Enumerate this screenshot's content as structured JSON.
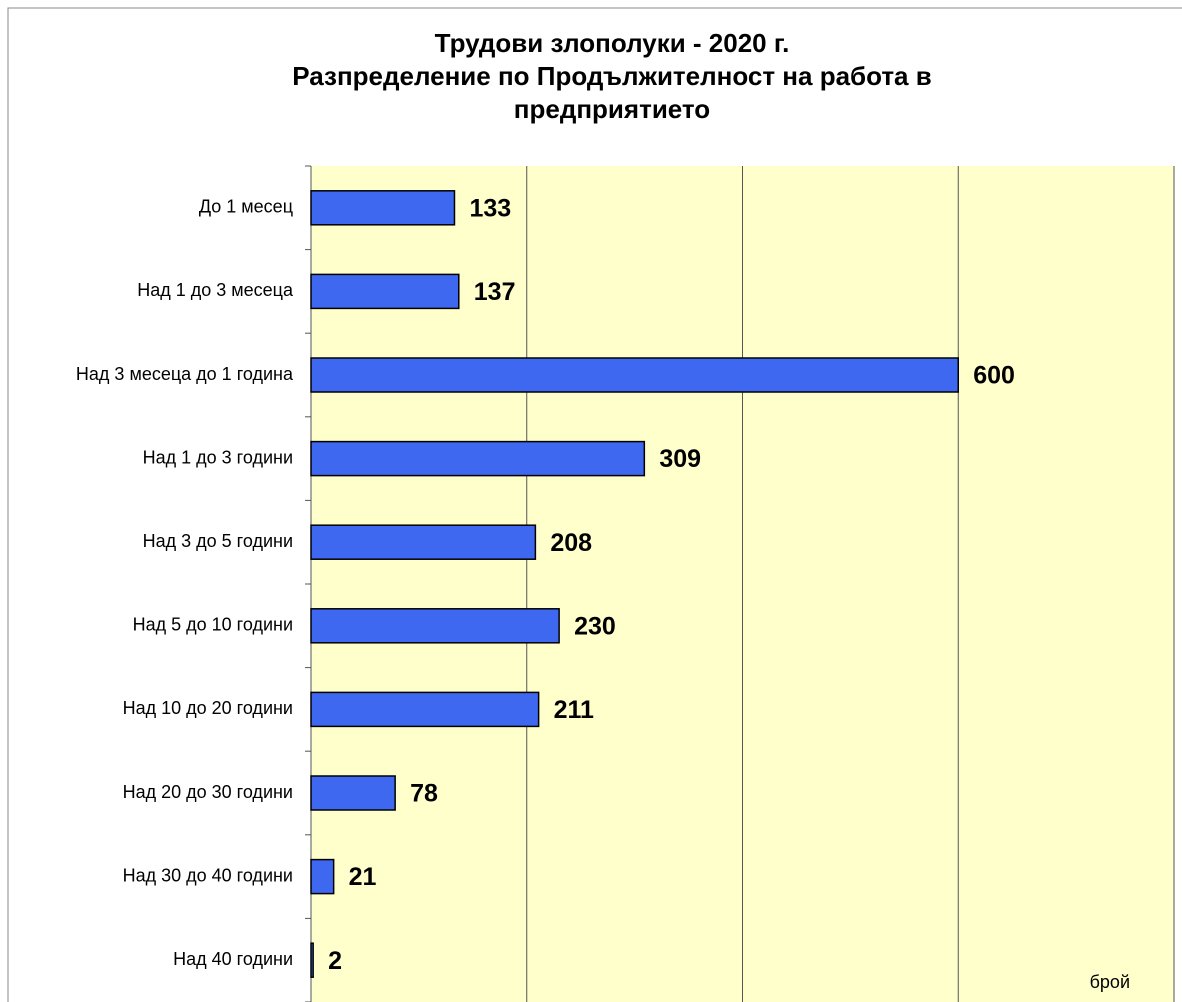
{
  "chart_data": {
    "type": "bar",
    "orientation": "horizontal",
    "title": [
      "Трудови злополуки - 2020 г.",
      "Разпределение по Продължителност на работа в",
      "предприятието"
    ],
    "categories": [
      "До 1 месец",
      "Над 1 до 3 месеца",
      "Над 3 месеца до 1 година",
      "Над 1 до 3 години",
      "Над 3 до 5 години",
      "Над 5 до 10 години",
      "Над 10 до 20 години",
      "Над 20 до 30 години",
      "Над 30 до 40 години",
      "Над 40 години"
    ],
    "values": [
      133,
      137,
      600,
      309,
      208,
      230,
      211,
      78,
      21,
      2
    ],
    "color": "#3f68f0",
    "background": "#ffffcc",
    "xlabel": "брой",
    "xlim": [
      0,
      800
    ],
    "xticks": [
      0,
      200,
      400,
      600,
      800
    ],
    "grid": true
  }
}
